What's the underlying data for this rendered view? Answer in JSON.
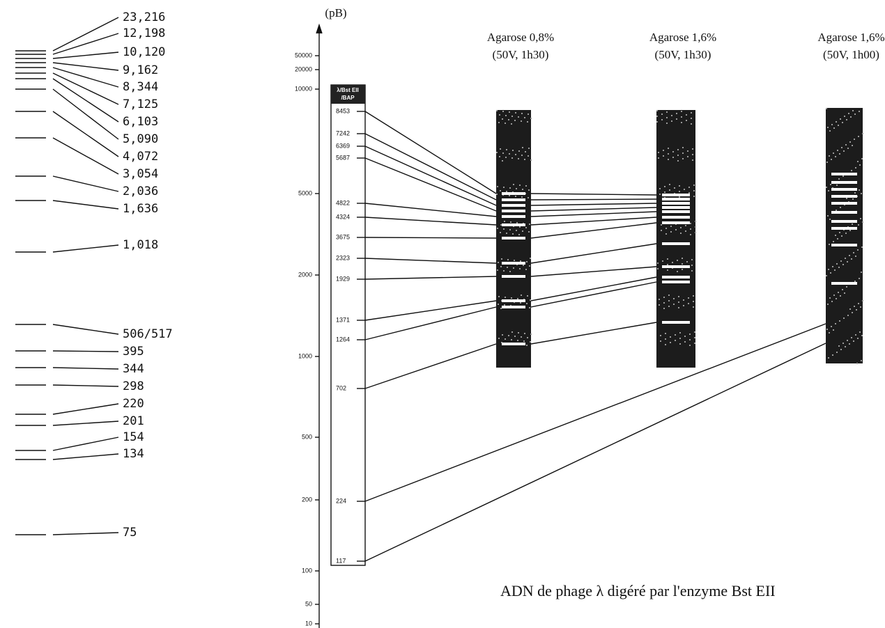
{
  "left_ladder": {
    "labels": [
      "23,216",
      "12,198",
      "10,120",
      "9,162",
      "8,344",
      "7,125",
      "6,103",
      "5,090",
      "4,072",
      "3,054",
      "2,036",
      "1,636",
      "1,018",
      "506/517",
      "395",
      "344",
      "298",
      "220",
      "201",
      "154",
      "134",
      "75"
    ]
  },
  "axis": {
    "unit": "(pB)",
    "ticks": [
      "50000",
      "20000",
      "10000",
      "5000",
      "2000",
      "1000",
      "500",
      "200",
      "100",
      "50",
      "10"
    ]
  },
  "marker": {
    "header": [
      "λ/Bst EII",
      "/BAP"
    ],
    "bands": [
      "8453",
      "7242",
      "6369",
      "5687",
      "4822",
      "4324",
      "3675",
      "2323",
      "1929",
      "1371",
      "1264",
      "702",
      "224",
      "117"
    ]
  },
  "gels": [
    {
      "title": "Agarose 0,8%",
      "conditions": "(50V, 1h30)"
    },
    {
      "title": "Agarose 1,6%",
      "conditions": "(50V, 1h30)"
    },
    {
      "title": "Agarose 1,6%",
      "conditions": "(50V, 1h00)"
    }
  ],
  "caption": "ADN de phage λ digéré par l'enzyme Bst EII"
}
